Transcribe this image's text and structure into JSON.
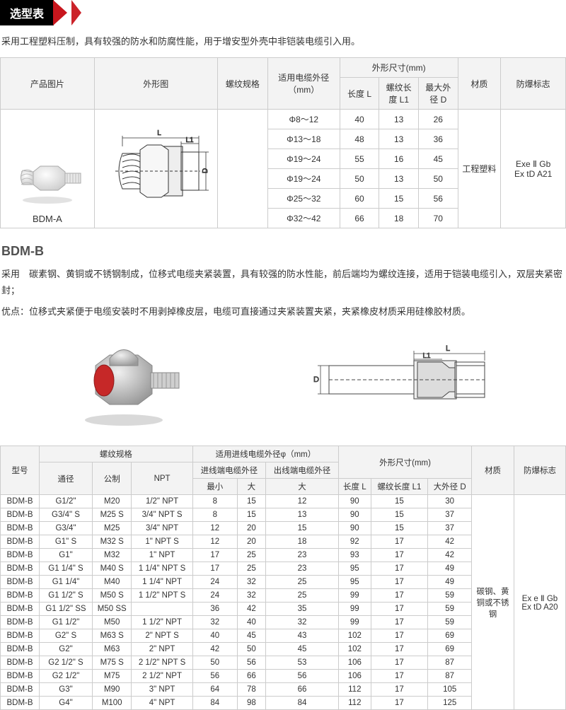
{
  "title": "选型表",
  "intro": "采用工程塑料压制，具有较强的防水和防腐性能，用于增安型外壳中非铠装电缆引入用。",
  "tableA": {
    "headers": {
      "image": "产品图片",
      "outline": "外形图",
      "thread": "螺纹规格",
      "cable": "适用电缆外径（mm）",
      "dims": "外形尺寸(mm)",
      "lenL": "长度 L",
      "lenL1": "螺纹长度 L1",
      "maxD": "最大外径 D",
      "material": "材质",
      "mark": "防爆标志"
    },
    "productLabel": "BDM-A",
    "materialText": "工程塑料",
    "markText": "Exe Ⅱ Gb\nEx tD A21",
    "rows": [
      {
        "thread": "",
        "cable": "Φ8～12",
        "l": "40",
        "l1": "13",
        "d": "26"
      },
      {
        "thread": "",
        "cable": "Φ13～18",
        "l": "48",
        "l1": "13",
        "d": "36"
      },
      {
        "thread": "",
        "cable": "Φ19～24",
        "l": "55",
        "l1": "16",
        "d": "45"
      },
      {
        "thread": "",
        "cable": "Φ19～24",
        "l": "50",
        "l1": "13",
        "d": "50"
      },
      {
        "thread": "",
        "cable": "Φ25～32",
        "l": "60",
        "l1": "15",
        "d": "56"
      },
      {
        "thread": "",
        "cable": "Φ32～42",
        "l": "66",
        "l1": "18",
        "d": "70"
      }
    ]
  },
  "sectionB": {
    "name": "BDM-B",
    "desc1": "采用　碳素钢、黄铜或不锈钢制成，位移式电缆夹紧装置，具有较强的防水性能，前后端均为螺纹连接，适用于铠装电缆引入，双层夹紧密封；",
    "desc2": "优点：位移式夹紧便于电缆安装时不用剥掉橡皮层，电缆可直接通过夹紧装置夹紧，夹紧橡皮材质采用硅橡胶材质。"
  },
  "tableB": {
    "headers": {
      "model": "型号",
      "thread": "螺纹规格",
      "diam": "通径",
      "metric": "公制",
      "npt": "NPT",
      "inlet": "适用进线电缆外径φ（mm）",
      "inSub": "进线端电缆外径",
      "outSub": "出线端电缆外径",
      "min": "最小",
      "max": "大",
      "outMax": "大",
      "dims": "外形尺寸(mm)",
      "lenL": "长度 L",
      "lenL1": "螺纹长度 L1",
      "bigD": "大外径 D",
      "material": "材质",
      "mark": "防爆标志"
    },
    "materialText": "碳钢、黄铜或不锈钢",
    "markText": "Ex e Ⅱ Gb\nEx tD A20",
    "rows": [
      {
        "m": "BDM-B",
        "d": "G1/2\"",
        "me": "M20",
        "n": "1/2\" NPT",
        "imin": "8",
        "imax": "15",
        "omax": "12",
        "l": "90",
        "l1": "15",
        "bd": "30"
      },
      {
        "m": "BDM-B",
        "d": "G3/4\" S",
        "me": "M25 S",
        "n": "3/4\" NPT S",
        "imin": "8",
        "imax": "15",
        "omax": "13",
        "l": "90",
        "l1": "15",
        "bd": "37"
      },
      {
        "m": "BDM-B",
        "d": "G3/4\"",
        "me": "M25",
        "n": "3/4\" NPT",
        "imin": "12",
        "imax": "20",
        "omax": "15",
        "l": "90",
        "l1": "15",
        "bd": "37"
      },
      {
        "m": "BDM-B",
        "d": "G1\" S",
        "me": "M32 S",
        "n": "1\" NPT S",
        "imin": "12",
        "imax": "20",
        "omax": "18",
        "l": "92",
        "l1": "17",
        "bd": "42"
      },
      {
        "m": "BDM-B",
        "d": "G1\"",
        "me": "M32",
        "n": "1\" NPT",
        "imin": "17",
        "imax": "25",
        "omax": "23",
        "l": "93",
        "l1": "17",
        "bd": "42"
      },
      {
        "m": "BDM-B",
        "d": "G1 1/4\" S",
        "me": "M40 S",
        "n": "1 1/4\" NPT S",
        "imin": "17",
        "imax": "25",
        "omax": "23",
        "l": "95",
        "l1": "17",
        "bd": "49"
      },
      {
        "m": "BDM-B",
        "d": "G1 1/4\"",
        "me": "M40",
        "n": "1 1/4\" NPT",
        "imin": "24",
        "imax": "32",
        "omax": "25",
        "l": "95",
        "l1": "17",
        "bd": "49"
      },
      {
        "m": "BDM-B",
        "d": "G1 1/2\" S",
        "me": "M50 S",
        "n": "1 1/2\" NPT S",
        "imin": "24",
        "imax": "32",
        "omax": "25",
        "l": "99",
        "l1": "17",
        "bd": "59"
      },
      {
        "m": "BDM-B",
        "d": "G1 1/2\" SS",
        "me": "M50 SS",
        "n": "",
        "imin": "36",
        "imax": "42",
        "omax": "35",
        "l": "99",
        "l1": "17",
        "bd": "59"
      },
      {
        "m": "BDM-B",
        "d": "G1 1/2\"",
        "me": "M50",
        "n": "1 1/2\" NPT",
        "imin": "32",
        "imax": "40",
        "omax": "32",
        "l": "99",
        "l1": "17",
        "bd": "59"
      },
      {
        "m": "BDM-B",
        "d": "G2\" S",
        "me": "M63 S",
        "n": "2\" NPT S",
        "imin": "40",
        "imax": "45",
        "omax": "43",
        "l": "102",
        "l1": "17",
        "bd": "69"
      },
      {
        "m": "BDM-B",
        "d": "G2\"",
        "me": "M63",
        "n": "2\" NPT",
        "imin": "42",
        "imax": "50",
        "omax": "45",
        "l": "102",
        "l1": "17",
        "bd": "69"
      },
      {
        "m": "BDM-B",
        "d": "G2 1/2\" S",
        "me": "M75 S",
        "n": "2 1/2\" NPT S",
        "imin": "50",
        "imax": "56",
        "omax": "53",
        "l": "106",
        "l1": "17",
        "bd": "87"
      },
      {
        "m": "BDM-B",
        "d": "G2 1/2\"",
        "me": "M75",
        "n": "2 1/2\" NPT",
        "imin": "56",
        "imax": "66",
        "omax": "56",
        "l": "106",
        "l1": "17",
        "bd": "87"
      },
      {
        "m": "BDM-B",
        "d": "G3\"",
        "me": "M90",
        "n": "3\" NPT",
        "imin": "64",
        "imax": "78",
        "omax": "66",
        "l": "112",
        "l1": "17",
        "bd": "105"
      },
      {
        "m": "BDM-B",
        "d": "G4\"",
        "me": "M100",
        "n": "4\" NPT",
        "imin": "84",
        "imax": "98",
        "omax": "84",
        "l": "112",
        "l1": "17",
        "bd": "125"
      }
    ]
  },
  "diagLabels": {
    "L": "L",
    "L1": "L1",
    "D": "D"
  }
}
